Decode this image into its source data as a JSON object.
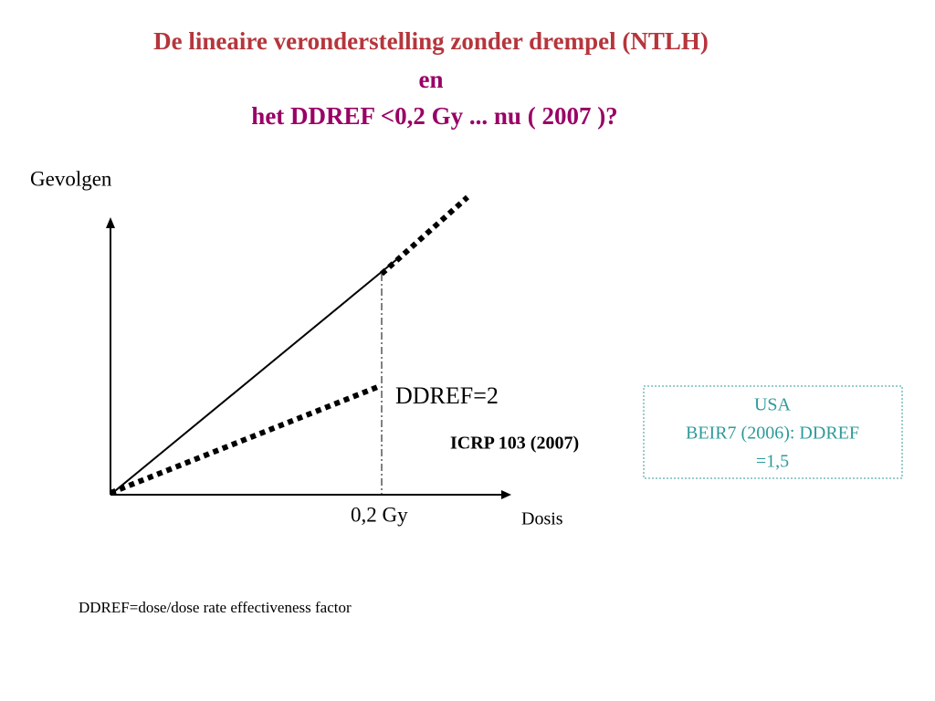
{
  "title": {
    "line1": "De lineaire veronderstelling zonder drempel (NTLH)",
    "line2": "en",
    "line3": "het DDREF <0,2 Gy ... nu ( 2007 )?"
  },
  "diagram": {
    "y_axis_label": "Gevolgen",
    "x_axis_label": "Dosis",
    "dose_marker": "0,2 Gy",
    "ddref_label": "DDREF=2",
    "icrp_label": "ICRP 103 (2007)"
  },
  "box": {
    "lines": [
      "USA",
      "BEIR7 (2006): DDREF",
      "=1,5"
    ]
  },
  "footnote": "DDREF=dose/dose rate effectiveness factor"
}
